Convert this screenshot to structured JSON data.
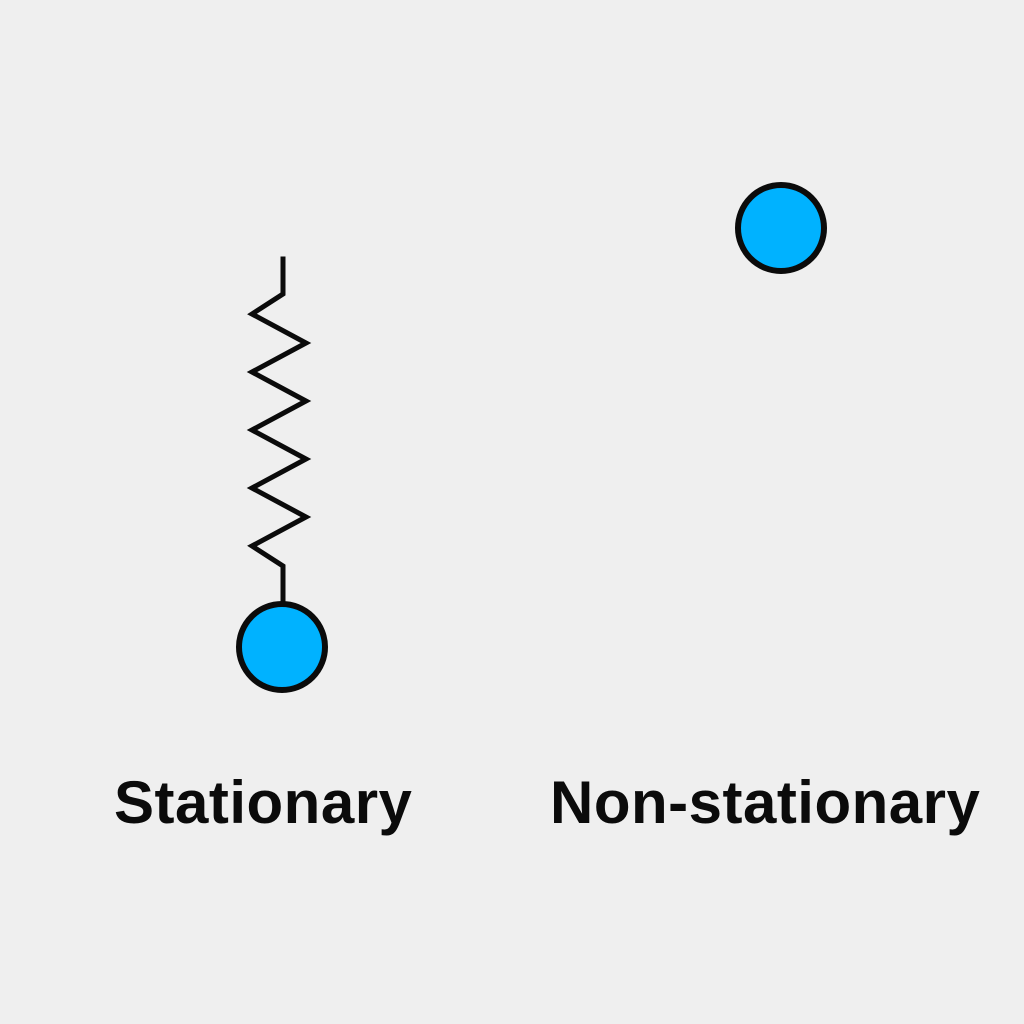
{
  "colors": {
    "background": "#efefef",
    "ball_fill": "#00b2ff",
    "stroke": "#0b0b0b",
    "text": "#0b0b0b"
  },
  "panels": [
    {
      "label": "Stationary",
      "elements": [
        "spring-icon",
        "ball-icon"
      ]
    },
    {
      "label": "Non-stationary",
      "elements": [
        "ball-icon"
      ]
    }
  ]
}
